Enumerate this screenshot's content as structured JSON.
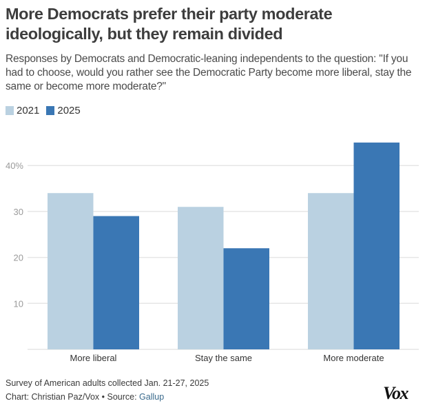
{
  "header": {
    "title": "More Democrats prefer their party moderate ideologically, but they remain divided",
    "subtitle": "Responses by Democrats and Democratic-leaning independents to the question: \"If you had to choose, would you rather see the Democratic Party become more liberal, stay the same or become more moderate?\""
  },
  "legend": [
    {
      "label": "2021",
      "color": "#bad1e1"
    },
    {
      "label": "2025",
      "color": "#3a77b4"
    }
  ],
  "chart_data": {
    "type": "bar",
    "title": "More Democrats prefer their party moderate ideologically, but they remain divided",
    "xlabel": "",
    "ylabel": "",
    "categories": [
      "More liberal",
      "Stay the same",
      "More moderate"
    ],
    "series": [
      {
        "name": "2021",
        "color": "#bad1e1",
        "values": [
          34,
          31,
          34
        ]
      },
      {
        "name": "2025",
        "color": "#3a77b4",
        "values": [
          29,
          22,
          45
        ]
      }
    ],
    "ylim": [
      0,
      45
    ],
    "yticks": [
      10,
      20,
      30,
      40
    ],
    "ytick_labels": [
      "10",
      "20",
      "30",
      "40%"
    ],
    "grid": true,
    "legend_position": "top-left"
  },
  "footer": {
    "note": "Survey of American adults collected Jan. 21-27, 2025",
    "credit_prefix": "Chart: Christian Paz/Vox • Source: ",
    "source_link": "Gallup",
    "logo": "Vox"
  }
}
